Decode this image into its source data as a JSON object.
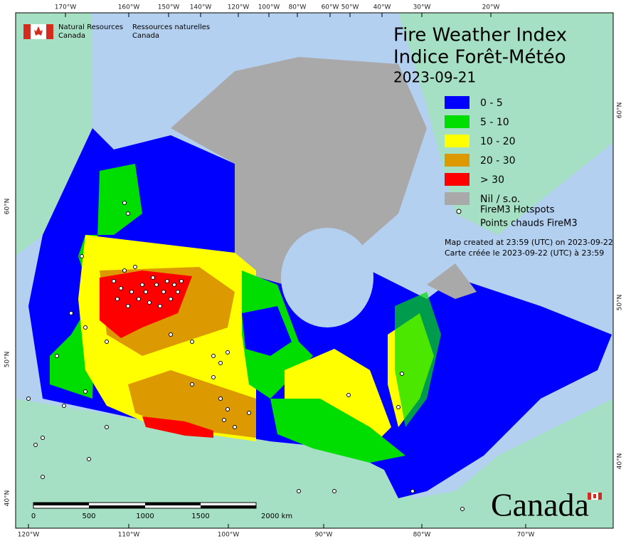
{
  "header": {
    "dept_en": [
      "Natural Resources",
      "Canada"
    ],
    "dept_fr": [
      "Ressources naturelles",
      "Canada"
    ]
  },
  "title": {
    "line1": "Fire Weather Index",
    "line2": "Indice Forêt-Météo",
    "date": "2023-09-21"
  },
  "legend": {
    "items": [
      {
        "label": "0 - 5",
        "color": "#0000ff"
      },
      {
        "label": "5 - 10",
        "color": "#00dd00"
      },
      {
        "label": "10 - 20",
        "color": "#ffff00"
      },
      {
        "label": "20 - 30",
        "color": "#dd9900"
      },
      {
        "label": "> 30",
        "color": "#ff0000"
      },
      {
        "label": "Nil / s.o.",
        "color": "#a9a9a9"
      }
    ],
    "hotspots": [
      "FireM3 Hotspots",
      "Points chauds FireM3"
    ]
  },
  "note": [
    "Map created at 23:59 (UTC) on 2023-09-22",
    "Carte créée le 2023-09-22 (UTC) à 23:59"
  ],
  "graticule": {
    "top": [
      "170°W",
      "160°W",
      "150°W",
      "140°W",
      "120°W",
      "100°W",
      "80°W",
      "60°W",
      "50°W",
      "40°W",
      "30°W",
      "20°W"
    ],
    "bottom": [
      "120°W",
      "110°W",
      "100°W",
      "90°W",
      "80°W",
      "70°W"
    ],
    "left": [
      "60°N",
      "50°N",
      "40°N"
    ],
    "right": [
      "60°N",
      "50°N",
      "40°N"
    ]
  },
  "scale_bar": [
    "0",
    "500",
    "1000",
    "1500",
    "2000 km"
  ],
  "wordmark": "Canada"
}
